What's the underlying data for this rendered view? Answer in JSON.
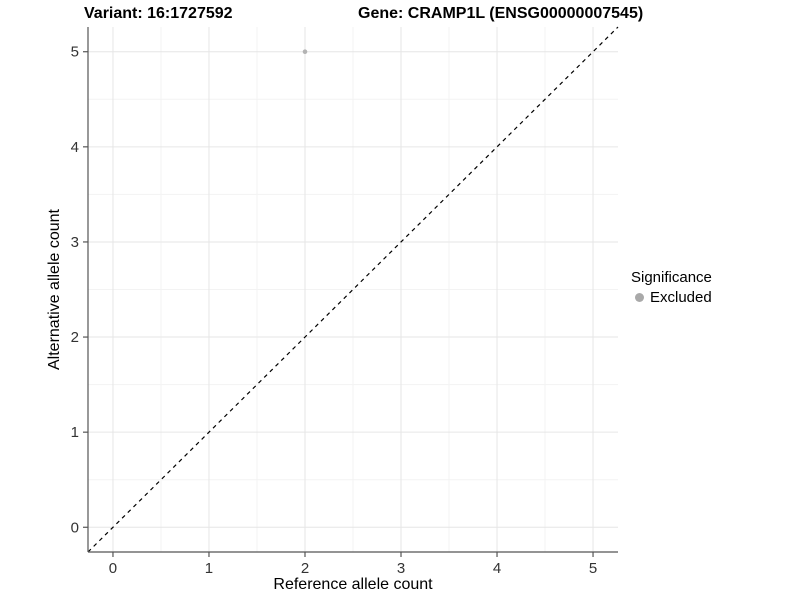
{
  "figure": {
    "title_left": "Variant: 16:1727592",
    "title_right": "Gene: CRAMP1L (ENSG00000007545)"
  },
  "chart_data": {
    "type": "scatter",
    "title": "Variant: 16:1727592",
    "subtitle": "Gene: CRAMP1L (ENSG00000007545)",
    "xlabel": "Reference allele count",
    "ylabel": "Alternative allele count",
    "xlim": [
      -0.26,
      5.26
    ],
    "ylim": [
      -0.26,
      5.26
    ],
    "xticks": [
      0,
      1,
      2,
      3,
      4,
      5
    ],
    "yticks": [
      0,
      1,
      2,
      3,
      4,
      5
    ],
    "minor_gridlines": [
      0.5,
      1.5,
      2.5,
      3.5,
      4.5
    ],
    "grid": "on",
    "series": [
      {
        "name": "Excluded",
        "points": [
          {
            "x": 2,
            "y": 5
          }
        ],
        "color": "#b3b3b3",
        "marker_radius": 2.3
      }
    ],
    "reference_line": {
      "type": "identity",
      "equation": "y = x",
      "style": "dashed",
      "color": "#000000"
    },
    "legend": {
      "title": "Significance",
      "position": "right",
      "items": [
        {
          "label": "Excluded",
          "color": "#a9a9a9"
        }
      ]
    },
    "colors": {
      "grid_major": "#e6e6e6",
      "grid_minor": "#f3f3f3",
      "axis_line": "#555555",
      "tick_label": "#333333",
      "text": "#000000",
      "background": "#ffffff"
    }
  }
}
